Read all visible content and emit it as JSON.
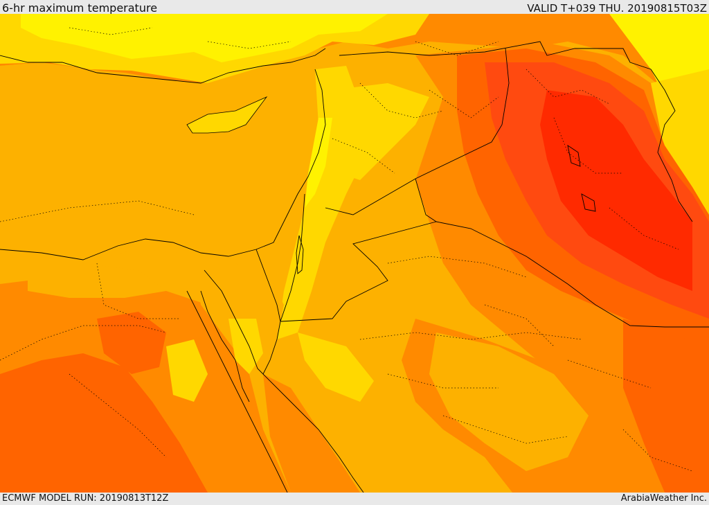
{
  "header": {
    "title": "6-hr maximum temperature",
    "valid": "VALID T+039 THU. 20190815T03Z"
  },
  "footer": {
    "model_run": "ECMWF MODEL RUN: 20190813T12Z",
    "credit": "ArabiaWeather Inc."
  },
  "map": {
    "layer": "temperature-shading",
    "palette": {
      "cool_yellow": "#fff200",
      "yellow": "#ffd800",
      "light_orange": "#fdb100",
      "orange": "#ff8a00",
      "dark_orange": "#ff6400",
      "red_orange": "#ff4a10",
      "red": "#ff2a00",
      "border": "#000000"
    }
  }
}
